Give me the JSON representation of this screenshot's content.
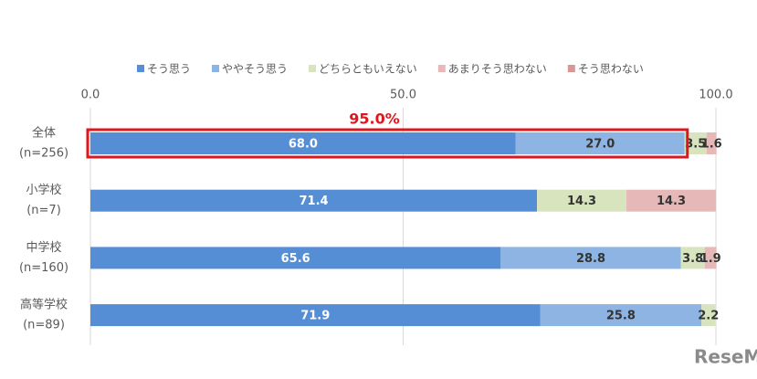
{
  "chart_data": {
    "type": "stacked-bar-horizontal",
    "categories": [
      [
        "全体",
        "(n=256)"
      ],
      [
        "小学校",
        "(n=7)"
      ],
      [
        "中学校",
        "(n=160)"
      ],
      [
        "高等学校",
        "(n=89)"
      ]
    ],
    "series": [
      {
        "name": "そう思う",
        "color": "#558ed5",
        "values": [
          68.0,
          71.4,
          65.6,
          71.9
        ],
        "value_labels": [
          "68.0",
          "71.4",
          "65.6",
          "71.9"
        ]
      },
      {
        "name": "ややそう思う",
        "color": "#8db4e2",
        "values": [
          27.0,
          null,
          28.8,
          25.8
        ],
        "value_labels": [
          "27.0",
          null,
          "28.8",
          "25.8"
        ]
      },
      {
        "name": "どちらともいえない",
        "color": "#d7e4bd",
        "values": [
          3.5,
          14.3,
          3.8,
          2.2
        ],
        "value_labels": [
          "3.5",
          "14.3",
          "3.8",
          "2.2"
        ]
      },
      {
        "name": "あまりそう思わない",
        "color": "#e6b9b8",
        "values": [
          1.6,
          14.3,
          1.9,
          null
        ],
        "value_labels": [
          "1.6",
          "14.3",
          "1.9",
          null
        ]
      },
      {
        "name": "そう思わない",
        "color": "#d99694",
        "values": [
          null,
          null,
          null,
          null
        ],
        "value_labels": [
          null,
          null,
          null,
          null
        ]
      }
    ],
    "xlim": [
      0,
      100
    ],
    "xticks": [
      {
        "value": 0,
        "label": "0.0"
      },
      {
        "value": 50,
        "label": "50.0"
      },
      {
        "value": 100,
        "label": "100.0"
      }
    ],
    "grid": true,
    "legend": "top",
    "annotation": {
      "value": 95,
      "label": "95.0%",
      "color": "#e0161e"
    }
  }
}
